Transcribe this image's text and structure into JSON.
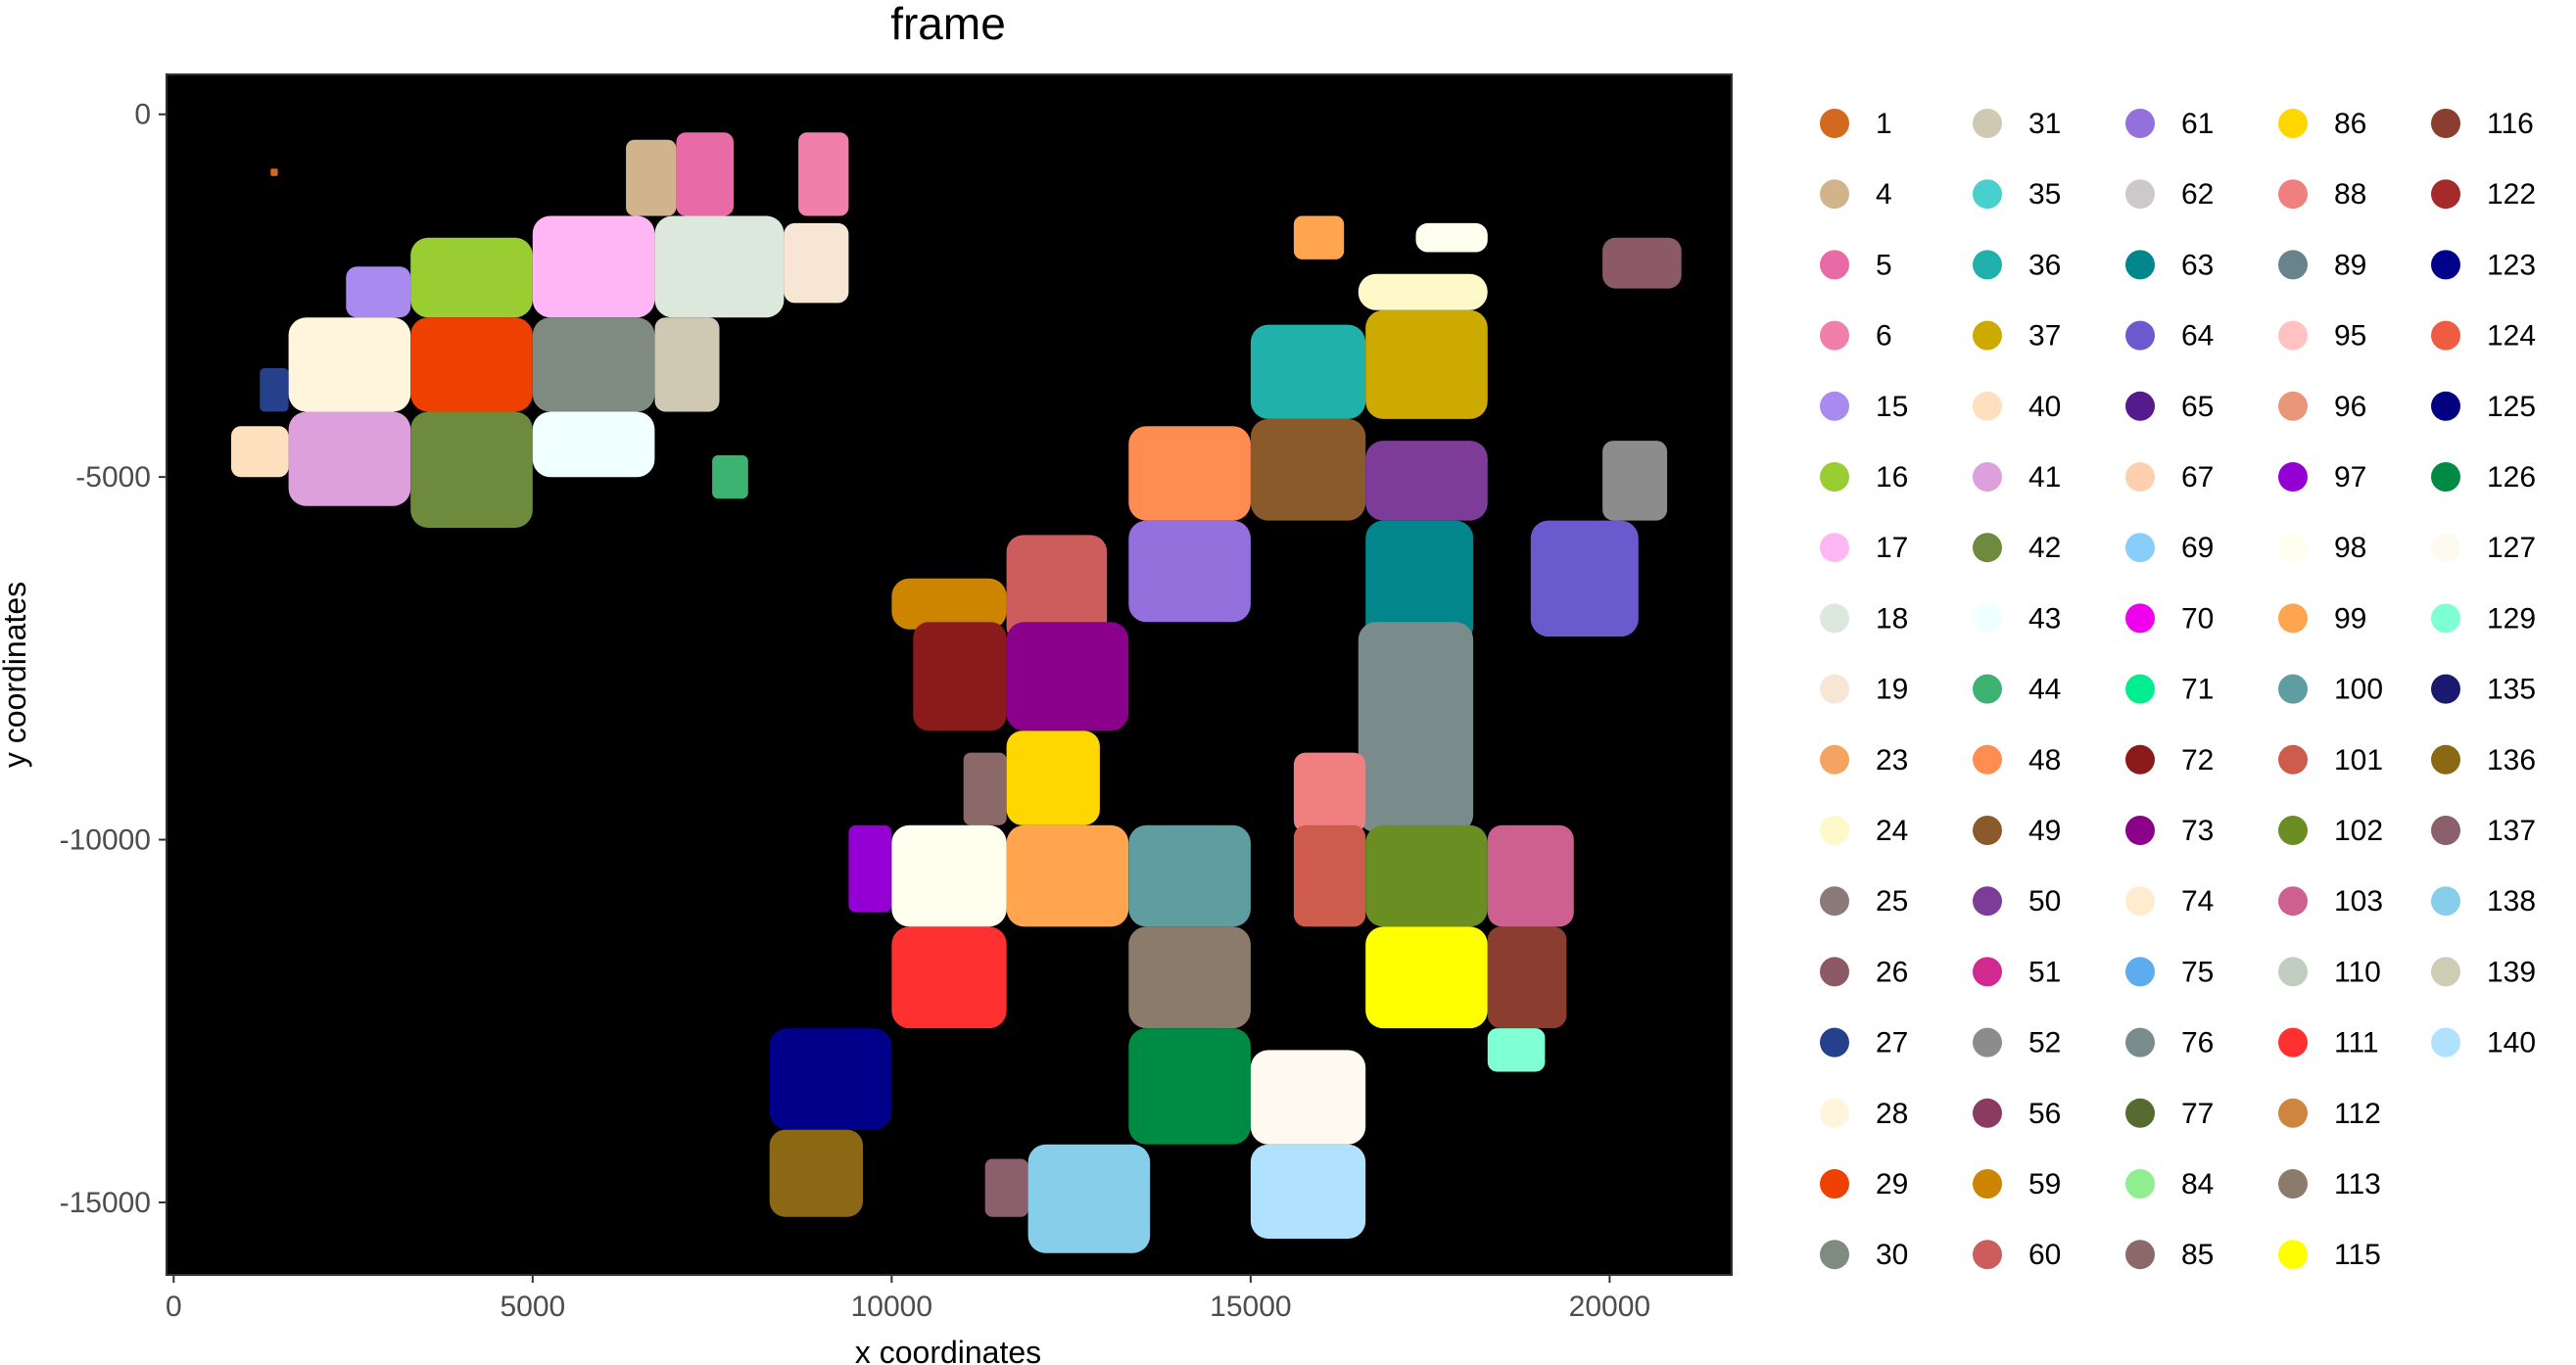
{
  "chart_data": {
    "type": "scatter",
    "title": "frame",
    "xlabel": "x coordinates",
    "ylabel": "y coordinates",
    "xlim": [
      -100,
      21700
    ],
    "ylim": [
      -16000,
      550
    ],
    "x_ticks": [
      0,
      5000,
      10000,
      15000,
      20000
    ],
    "x_tick_labels": [
      "0",
      "5000",
      "10000",
      "15000",
      "20000"
    ],
    "y_ticks": [
      0,
      -5000,
      -10000,
      -15000
    ],
    "y_tick_labels": [
      "0",
      "-5000",
      "-10000",
      "-15000"
    ],
    "panel_background": "#000000",
    "grid": false,
    "legend_placement": "right",
    "legend": [
      {
        "label": "1",
        "color": "#D2691E"
      },
      {
        "label": "4",
        "color": "#D2B48C"
      },
      {
        "label": "5",
        "color": "#E86AA6"
      },
      {
        "label": "6",
        "color": "#F07FAA"
      },
      {
        "label": "15",
        "color": "#A98BF0"
      },
      {
        "label": "16",
        "color": "#9ACD32"
      },
      {
        "label": "17",
        "color": "#FFB6F4"
      },
      {
        "label": "18",
        "color": "#DDE8DD"
      },
      {
        "label": "19",
        "color": "#F8E6D4"
      },
      {
        "label": "23",
        "color": "#F4A460"
      },
      {
        "label": "24",
        "color": "#FFF8C8"
      },
      {
        "label": "25",
        "color": "#8B7A7A"
      },
      {
        "label": "26",
        "color": "#8B5A66"
      },
      {
        "label": "27",
        "color": "#27408B"
      },
      {
        "label": "28",
        "color": "#FFF5DC"
      },
      {
        "label": "29",
        "color": "#EE4000"
      },
      {
        "label": "30",
        "color": "#7F8B80"
      },
      {
        "label": "31",
        "color": "#CFC8B2"
      },
      {
        "label": "35",
        "color": "#48D1CC"
      },
      {
        "label": "36",
        "color": "#20B2AA"
      },
      {
        "label": "37",
        "color": "#CDAA00"
      },
      {
        "label": "40",
        "color": "#FFE0BE"
      },
      {
        "label": "41",
        "color": "#DDA0DD"
      },
      {
        "label": "42",
        "color": "#6E8B3D"
      },
      {
        "label": "43",
        "color": "#F0FFFF"
      },
      {
        "label": "44",
        "color": "#3CB371"
      },
      {
        "label": "48",
        "color": "#FF8C50"
      },
      {
        "label": "49",
        "color": "#8B5A2B"
      },
      {
        "label": "50",
        "color": "#7D3C98"
      },
      {
        "label": "51",
        "color": "#D02A90"
      },
      {
        "label": "52",
        "color": "#8C8C8C"
      },
      {
        "label": "56",
        "color": "#8B3A62"
      },
      {
        "label": "59",
        "color": "#CD8500"
      },
      {
        "label": "60",
        "color": "#CD5C5C"
      },
      {
        "label": "61",
        "color": "#9370DB"
      },
      {
        "label": "62",
        "color": "#CDC9C9"
      },
      {
        "label": "63",
        "color": "#00868B"
      },
      {
        "label": "64",
        "color": "#6A5ACD"
      },
      {
        "label": "65",
        "color": "#551A8B"
      },
      {
        "label": "67",
        "color": "#FFD0B0"
      },
      {
        "label": "69",
        "color": "#87CEFA"
      },
      {
        "label": "70",
        "color": "#EE00EE"
      },
      {
        "label": "71",
        "color": "#00EE90"
      },
      {
        "label": "72",
        "color": "#8B1A1A"
      },
      {
        "label": "73",
        "color": "#8B008B"
      },
      {
        "label": "74",
        "color": "#FFEBCD"
      },
      {
        "label": "75",
        "color": "#5CACEE"
      },
      {
        "label": "76",
        "color": "#7A8B8B"
      },
      {
        "label": "77",
        "color": "#556B2F"
      },
      {
        "label": "84",
        "color": "#90EE90"
      },
      {
        "label": "85",
        "color": "#8B6969"
      },
      {
        "label": "86",
        "color": "#FFD700"
      },
      {
        "label": "88",
        "color": "#F08080"
      },
      {
        "label": "89",
        "color": "#68838B"
      },
      {
        "label": "95",
        "color": "#FFC1C1"
      },
      {
        "label": "96",
        "color": "#E9967A"
      },
      {
        "label": "97",
        "color": "#9400D3"
      },
      {
        "label": "98",
        "color": "#FFFFF0"
      },
      {
        "label": "99",
        "color": "#FFA54F"
      },
      {
        "label": "100",
        "color": "#5F9EA0"
      },
      {
        "label": "101",
        "color": "#CD5C4C"
      },
      {
        "label": "102",
        "color": "#6B8E23"
      },
      {
        "label": "103",
        "color": "#CD6090"
      },
      {
        "label": "110",
        "color": "#C1CDC1"
      },
      {
        "label": "111",
        "color": "#FF3030"
      },
      {
        "label": "112",
        "color": "#CD853F"
      },
      {
        "label": "113",
        "color": "#8B7B6B"
      },
      {
        "label": "115",
        "color": "#FFFF00"
      },
      {
        "label": "116",
        "color": "#8B3E2F"
      },
      {
        "label": "122",
        "color": "#A52A2A"
      },
      {
        "label": "123",
        "color": "#00008B"
      },
      {
        "label": "124",
        "color": "#EE5C42"
      },
      {
        "label": "125",
        "color": "#000080"
      },
      {
        "label": "126",
        "color": "#008B45"
      },
      {
        "label": "127",
        "color": "#FFFAF0"
      },
      {
        "label": "129",
        "color": "#7FFFD4"
      },
      {
        "label": "135",
        "color": "#191970"
      },
      {
        "label": "136",
        "color": "#8B6914"
      },
      {
        "label": "137",
        "color": "#8B5F6B"
      },
      {
        "label": "138",
        "color": "#87CEEB"
      },
      {
        "label": "139",
        "color": "#CDCDB4"
      },
      {
        "label": "140",
        "color": "#B0E2FF"
      }
    ],
    "clusters": [
      {
        "label": "4",
        "x": [
          6300,
          7000
        ],
        "y": [
          -1400,
          -350
        ]
      },
      {
        "label": "5",
        "x": [
          7000,
          7800
        ],
        "y": [
          -1400,
          -250
        ]
      },
      {
        "label": "6",
        "x": [
          8700,
          9400
        ],
        "y": [
          -1400,
          -250
        ]
      },
      {
        "label": "16",
        "x": [
          3300,
          5000
        ],
        "y": [
          -2800,
          -1700
        ]
      },
      {
        "label": "17",
        "x": [
          5000,
          6700
        ],
        "y": [
          -2800,
          -1400
        ]
      },
      {
        "label": "18",
        "x": [
          6700,
          8500
        ],
        "y": [
          -2800,
          -1400
        ]
      },
      {
        "label": "19",
        "x": [
          8500,
          9400
        ],
        "y": [
          -2600,
          -1500
        ]
      },
      {
        "label": "15",
        "x": [
          2400,
          3300
        ],
        "y": [
          -2800,
          -2100
        ]
      },
      {
        "label": "28",
        "x": [
          1600,
          3300
        ],
        "y": [
          -4100,
          -2800
        ]
      },
      {
        "label": "29",
        "x": [
          3300,
          5000
        ],
        "y": [
          -4100,
          -2800
        ]
      },
      {
        "label": "30",
        "x": [
          5000,
          6700
        ],
        "y": [
          -4100,
          -2800
        ]
      },
      {
        "label": "31",
        "x": [
          6700,
          7600
        ],
        "y": [
          -4100,
          -2800
        ]
      },
      {
        "label": "27",
        "x": [
          1200,
          1600
        ],
        "y": [
          -4100,
          -3500
        ]
      },
      {
        "label": "41",
        "x": [
          1600,
          3300
        ],
        "y": [
          -5400,
          -4100
        ]
      },
      {
        "label": "42",
        "x": [
          3300,
          5000
        ],
        "y": [
          -5700,
          -4100
        ]
      },
      {
        "label": "43",
        "x": [
          5000,
          6700
        ],
        "y": [
          -5000,
          -4100
        ]
      },
      {
        "label": "40",
        "x": [
          800,
          1600
        ],
        "y": [
          -5000,
          -4300
        ]
      },
      {
        "label": "44",
        "x": [
          7500,
          8000
        ],
        "y": [
          -5300,
          -4700
        ]
      },
      {
        "label": "1",
        "x": [
          1350,
          1450
        ],
        "y": [
          -850,
          -750
        ]
      },
      {
        "label": "99",
        "x": [
          15600,
          16300
        ],
        "y": [
          -2000,
          -1400
        ]
      },
      {
        "label": "98",
        "x": [
          17300,
          18300
        ],
        "y": [
          -1900,
          -1500
        ]
      },
      {
        "label": "24",
        "x": [
          16500,
          18300
        ],
        "y": [
          -2700,
          -2200
        ]
      },
      {
        "label": "26",
        "x": [
          19900,
          21000
        ],
        "y": [
          -2400,
          -1700
        ]
      },
      {
        "label": "36",
        "x": [
          15000,
          16600
        ],
        "y": [
          -4200,
          -2900
        ]
      },
      {
        "label": "37",
        "x": [
          16600,
          18300
        ],
        "y": [
          -4200,
          -2700
        ]
      },
      {
        "label": "49",
        "x": [
          15000,
          16600
        ],
        "y": [
          -5600,
          -4200
        ]
      },
      {
        "label": "50",
        "x": [
          16600,
          18300
        ],
        "y": [
          -5600,
          -4500
        ]
      },
      {
        "label": "52",
        "x": [
          19900,
          20800
        ],
        "y": [
          -5600,
          -4500
        ]
      },
      {
        "label": "64",
        "x": [
          18900,
          20400
        ],
        "y": [
          -7200,
          -5600
        ]
      },
      {
        "label": "63",
        "x": [
          16600,
          18100
        ],
        "y": [
          -7300,
          -5600
        ]
      },
      {
        "label": "48",
        "x": [
          13300,
          15000
        ],
        "y": [
          -5600,
          -4300
        ]
      },
      {
        "label": "61",
        "x": [
          13300,
          15000
        ],
        "y": [
          -7000,
          -5600
        ]
      },
      {
        "label": "59",
        "x": [
          10000,
          11600
        ],
        "y": [
          -7100,
          -6400
        ]
      },
      {
        "label": "60",
        "x": [
          11600,
          13000
        ],
        "y": [
          -7300,
          -5800
        ]
      },
      {
        "label": "72",
        "x": [
          10300,
          11600
        ],
        "y": [
          -8500,
          -7000
        ]
      },
      {
        "label": "73",
        "x": [
          11600,
          13300
        ],
        "y": [
          -8500,
          -7000
        ]
      },
      {
        "label": "76",
        "x": [
          16500,
          18100
        ],
        "y": [
          -9900,
          -7000
        ]
      },
      {
        "label": "86",
        "x": [
          11600,
          12900
        ],
        "y": [
          -9800,
          -8500
        ]
      },
      {
        "label": "85",
        "x": [
          11000,
          11600
        ],
        "y": [
          -9800,
          -8800
        ]
      },
      {
        "label": "88",
        "x": [
          15600,
          16600
        ],
        "y": [
          -9900,
          -8800
        ]
      },
      {
        "label": "97",
        "x": [
          9400,
          10000
        ],
        "y": [
          -11000,
          -9800
        ]
      },
      {
        "label": "98",
        "x": [
          10000,
          11600
        ],
        "y": [
          -11200,
          -9800
        ]
      },
      {
        "label": "99",
        "x": [
          11600,
          13300
        ],
        "y": [
          -11200,
          -9800
        ]
      },
      {
        "label": "100",
        "x": [
          13300,
          15000
        ],
        "y": [
          -11200,
          -9800
        ]
      },
      {
        "label": "101",
        "x": [
          15600,
          16600
        ],
        "y": [
          -11200,
          -9800
        ]
      },
      {
        "label": "102",
        "x": [
          16600,
          18300
        ],
        "y": [
          -11200,
          -9800
        ]
      },
      {
        "label": "103",
        "x": [
          18300,
          19500
        ],
        "y": [
          -11200,
          -9800
        ]
      },
      {
        "label": "111",
        "x": [
          10000,
          11600
        ],
        "y": [
          -12600,
          -11200
        ]
      },
      {
        "label": "113",
        "x": [
          13300,
          15000
        ],
        "y": [
          -12600,
          -11200
        ]
      },
      {
        "label": "115",
        "x": [
          16600,
          18300
        ],
        "y": [
          -12600,
          -11200
        ]
      },
      {
        "label": "116",
        "x": [
          18300,
          19400
        ],
        "y": [
          -12600,
          -11200
        ]
      },
      {
        "label": "123",
        "x": [
          8300,
          10000
        ],
        "y": [
          -14000,
          -12600
        ]
      },
      {
        "label": "126",
        "x": [
          13300,
          15000
        ],
        "y": [
          -14200,
          -12600
        ]
      },
      {
        "label": "127",
        "x": [
          15000,
          16600
        ],
        "y": [
          -14200,
          -12900
        ]
      },
      {
        "label": "129",
        "x": [
          18300,
          19100
        ],
        "y": [
          -13200,
          -12600
        ]
      },
      {
        "label": "136",
        "x": [
          8300,
          9600
        ],
        "y": [
          -15200,
          -14000
        ]
      },
      {
        "label": "137",
        "x": [
          11300,
          11900
        ],
        "y": [
          -15200,
          -14400
        ]
      },
      {
        "label": "138",
        "x": [
          11900,
          13600
        ],
        "y": [
          -15700,
          -14200
        ]
      },
      {
        "label": "140",
        "x": [
          15000,
          16600
        ],
        "y": [
          -15500,
          -14200
        ]
      }
    ]
  }
}
